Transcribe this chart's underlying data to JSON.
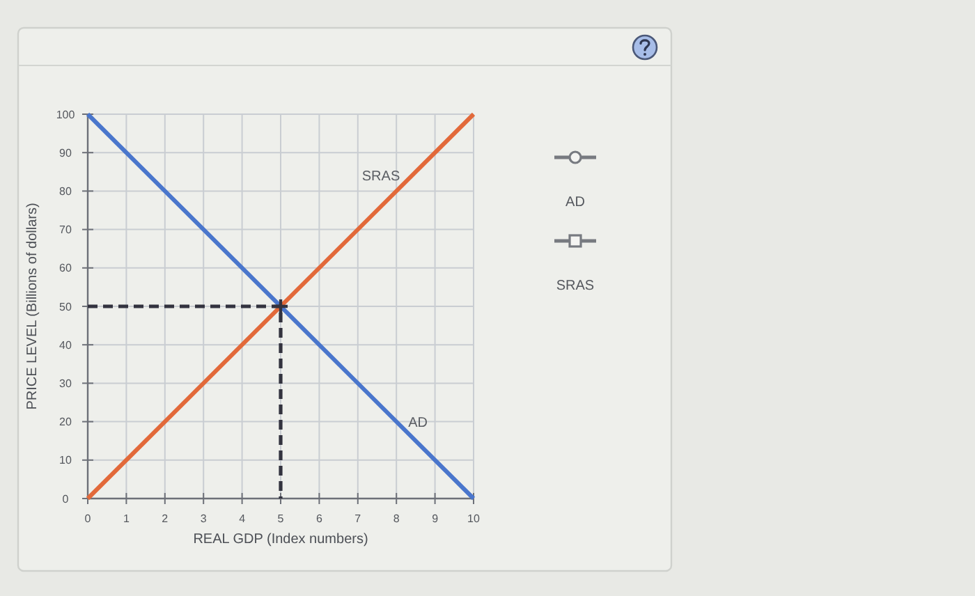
{
  "chart_data": {
    "type": "line",
    "xlabel": "REAL GDP (Index numbers)",
    "ylabel": "PRICE LEVEL (Billions of dollars)",
    "xlim": [
      0,
      10
    ],
    "xticks": [
      0,
      1,
      2,
      3,
      4,
      5,
      6,
      7,
      8,
      9,
      10
    ],
    "ylim": [
      0,
      100
    ],
    "yticks": [
      0,
      10,
      20,
      30,
      40,
      50,
      60,
      70,
      80,
      90,
      100
    ],
    "grid": true,
    "series": [
      {
        "name": "AD",
        "color": "#4a76cc",
        "x": [
          0,
          10
        ],
        "values": [
          100,
          0
        ]
      },
      {
        "name": "SRAS",
        "color": "#e2693a",
        "x": [
          0,
          10
        ],
        "values": [
          0,
          100
        ]
      },
      {
        "color": "#33333f",
        "x": [
          0,
          5,
          5
        ],
        "values": [
          50,
          50,
          0
        ],
        "line_style": "dashed"
      },
      {
        "type": "scatter",
        "color": "#33333f",
        "x": [
          5
        ],
        "values": [
          50
        ],
        "marker": "cross"
      }
    ],
    "annotations": [
      "AD",
      "SRAS"
    ]
  }
}
